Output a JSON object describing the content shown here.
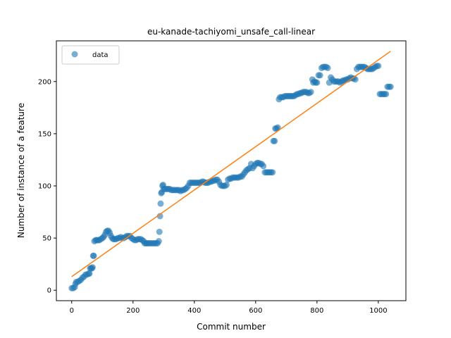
{
  "chart_data": {
    "type": "scatter",
    "title": "eu-kanade-tachiyomi_unsafe_call-linear",
    "xlabel": "Commit number",
    "ylabel": "Number of instance of a feature",
    "xlim": [
      -50,
      1090
    ],
    "ylim": [
      -10,
      239
    ],
    "xticks": [
      0,
      200,
      400,
      600,
      800,
      1000
    ],
    "yticks": [
      0,
      50,
      100,
      150,
      200
    ],
    "legend": {
      "placement": "top-left",
      "entries": [
        "data"
      ]
    },
    "colors": {
      "data": "#1f77b4",
      "fit": "#ff7f0e"
    },
    "series": [
      {
        "name": "data",
        "kind": "scatter",
        "points": [
          [
            0,
            2
          ],
          [
            5,
            2
          ],
          [
            10,
            3
          ],
          [
            12,
            6
          ],
          [
            15,
            8
          ],
          [
            20,
            8
          ],
          [
            25,
            9
          ],
          [
            30,
            10
          ],
          [
            35,
            12
          ],
          [
            40,
            13
          ],
          [
            45,
            15
          ],
          [
            50,
            15
          ],
          [
            55,
            16
          ],
          [
            58,
            16
          ],
          [
            60,
            21
          ],
          [
            63,
            21
          ],
          [
            66,
            21
          ],
          [
            68,
            22
          ],
          [
            70,
            33
          ],
          [
            72,
            33
          ],
          [
            74,
            47
          ],
          [
            78,
            48
          ],
          [
            82,
            48
          ],
          [
            86,
            48
          ],
          [
            90,
            48
          ],
          [
            95,
            49
          ],
          [
            100,
            50
          ],
          [
            104,
            51
          ],
          [
            108,
            53
          ],
          [
            112,
            56
          ],
          [
            116,
            57
          ],
          [
            120,
            57
          ],
          [
            124,
            55
          ],
          [
            128,
            52
          ],
          [
            132,
            50
          ],
          [
            136,
            49
          ],
          [
            140,
            49
          ],
          [
            145,
            49
          ],
          [
            150,
            50
          ],
          [
            155,
            50
          ],
          [
            160,
            51
          ],
          [
            165,
            50
          ],
          [
            170,
            50
          ],
          [
            175,
            51
          ],
          [
            180,
            52
          ],
          [
            185,
            52
          ],
          [
            190,
            52
          ],
          [
            195,
            50
          ],
          [
            200,
            49
          ],
          [
            205,
            48
          ],
          [
            210,
            48
          ],
          [
            215,
            49
          ],
          [
            220,
            49
          ],
          [
            225,
            49
          ],
          [
            230,
            48
          ],
          [
            235,
            47
          ],
          [
            238,
            45
          ],
          [
            242,
            45
          ],
          [
            246,
            45
          ],
          [
            250,
            45
          ],
          [
            255,
            45
          ],
          [
            260,
            45
          ],
          [
            265,
            45
          ],
          [
            270,
            45
          ],
          [
            275,
            45
          ],
          [
            280,
            45
          ],
          [
            284,
            47
          ],
          [
            286,
            56
          ],
          [
            288,
            71
          ],
          [
            290,
            83
          ],
          [
            292,
            93
          ],
          [
            294,
            94
          ],
          [
            296,
            100
          ],
          [
            298,
            101
          ],
          [
            300,
            97
          ],
          [
            305,
            97
          ],
          [
            310,
            97
          ],
          [
            315,
            97
          ],
          [
            320,
            97
          ],
          [
            325,
            96
          ],
          [
            330,
            96
          ],
          [
            335,
            96
          ],
          [
            340,
            96
          ],
          [
            345,
            96
          ],
          [
            350,
            96
          ],
          [
            355,
            95
          ],
          [
            360,
            96
          ],
          [
            365,
            96
          ],
          [
            370,
            97
          ],
          [
            375,
            98
          ],
          [
            380,
            100
          ],
          [
            385,
            103
          ],
          [
            390,
            103
          ],
          [
            395,
            103
          ],
          [
            400,
            103
          ],
          [
            405,
            103
          ],
          [
            410,
            103
          ],
          [
            415,
            103
          ],
          [
            420,
            103
          ],
          [
            425,
            104
          ],
          [
            430,
            104
          ],
          [
            435,
            103
          ],
          [
            440,
            103
          ],
          [
            445,
            103
          ],
          [
            450,
            104
          ],
          [
            455,
            104
          ],
          [
            460,
            105
          ],
          [
            465,
            105
          ],
          [
            470,
            106
          ],
          [
            475,
            106
          ],
          [
            480,
            104
          ],
          [
            485,
            101
          ],
          [
            490,
            100
          ],
          [
            495,
            100
          ],
          [
            500,
            100
          ],
          [
            505,
            101
          ],
          [
            510,
            106
          ],
          [
            515,
            107
          ],
          [
            520,
            107
          ],
          [
            525,
            108
          ],
          [
            530,
            108
          ],
          [
            535,
            108
          ],
          [
            540,
            108
          ],
          [
            545,
            108
          ],
          [
            550,
            109
          ],
          [
            555,
            109
          ],
          [
            560,
            111
          ],
          [
            565,
            113
          ],
          [
            570,
            115
          ],
          [
            575,
            116
          ],
          [
            580,
            117
          ],
          [
            585,
            121
          ],
          [
            590,
            117
          ],
          [
            595,
            119
          ],
          [
            600,
            121
          ],
          [
            605,
            122
          ],
          [
            610,
            122
          ],
          [
            615,
            121
          ],
          [
            620,
            121
          ],
          [
            625,
            119
          ],
          [
            630,
            113
          ],
          [
            635,
            113
          ],
          [
            640,
            113
          ],
          [
            645,
            113
          ],
          [
            650,
            113
          ],
          [
            655,
            113
          ],
          [
            658,
            143
          ],
          [
            662,
            143
          ],
          [
            664,
            155
          ],
          [
            668,
            155
          ],
          [
            672,
            156
          ],
          [
            676,
            183
          ],
          [
            680,
            185
          ],
          [
            685,
            185
          ],
          [
            690,
            185
          ],
          [
            695,
            186
          ],
          [
            700,
            186
          ],
          [
            705,
            186
          ],
          [
            710,
            186
          ],
          [
            715,
            186
          ],
          [
            720,
            186
          ],
          [
            725,
            186
          ],
          [
            730,
            187
          ],
          [
            735,
            188
          ],
          [
            740,
            188
          ],
          [
            745,
            189
          ],
          [
            750,
            189
          ],
          [
            755,
            190
          ],
          [
            760,
            190
          ],
          [
            765,
            190
          ],
          [
            770,
            189
          ],
          [
            775,
            189
          ],
          [
            780,
            190
          ],
          [
            785,
            202
          ],
          [
            788,
            199
          ],
          [
            792,
            200
          ],
          [
            796,
            199
          ],
          [
            800,
            199
          ],
          [
            805,
            206
          ],
          [
            810,
            206
          ],
          [
            815,
            213
          ],
          [
            820,
            214
          ],
          [
            825,
            214
          ],
          [
            830,
            214
          ],
          [
            835,
            213
          ],
          [
            840,
            199
          ],
          [
            845,
            204
          ],
          [
            850,
            202
          ],
          [
            855,
            200
          ],
          [
            860,
            200
          ],
          [
            865,
            200
          ],
          [
            870,
            200
          ],
          [
            875,
            199
          ],
          [
            880,
            200
          ],
          [
            885,
            201
          ],
          [
            890,
            201
          ],
          [
            895,
            202
          ],
          [
            900,
            202
          ],
          [
            905,
            203
          ],
          [
            910,
            204
          ],
          [
            915,
            203
          ],
          [
            920,
            203
          ],
          [
            925,
            202
          ],
          [
            930,
            212
          ],
          [
            935,
            214
          ],
          [
            940,
            214
          ],
          [
            945,
            214
          ],
          [
            950,
            214
          ],
          [
            955,
            214
          ],
          [
            960,
            213
          ],
          [
            965,
            212
          ],
          [
            970,
            212
          ],
          [
            975,
            212
          ],
          [
            980,
            212
          ],
          [
            985,
            213
          ],
          [
            990,
            214
          ],
          [
            995,
            215
          ],
          [
            1000,
            215
          ],
          [
            1005,
            188
          ],
          [
            1010,
            188
          ],
          [
            1015,
            188
          ],
          [
            1020,
            188
          ],
          [
            1025,
            188
          ],
          [
            1030,
            195
          ],
          [
            1035,
            195
          ],
          [
            1040,
            195
          ]
        ]
      },
      {
        "name": "fit",
        "kind": "line",
        "points": [
          [
            0,
            13
          ],
          [
            1040,
            229
          ]
        ]
      }
    ]
  }
}
